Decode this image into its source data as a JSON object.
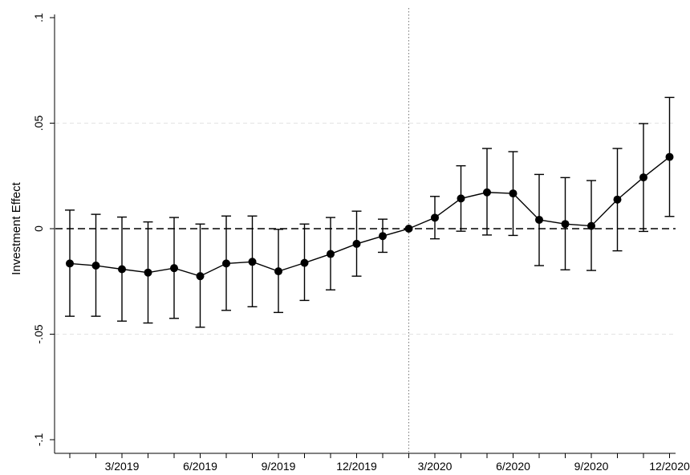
{
  "chart_data": {
    "type": "line",
    "title": "",
    "xlabel": "",
    "ylabel": "Investment Effect",
    "ylim": [
      -0.1,
      0.1
    ],
    "y_ticks": [
      {
        "value": 0.1,
        "label": ".1"
      },
      {
        "value": 0.05,
        "label": ".05"
      },
      {
        "value": 0,
        "label": "0"
      },
      {
        "value": -0.05,
        "label": "-.05"
      },
      {
        "value": -0.1,
        "label": "-.1"
      }
    ],
    "x_ticks": [
      {
        "value": "1/2019",
        "label": ""
      },
      {
        "value": "2/2019",
        "label": ""
      },
      {
        "value": "3/2019",
        "label": "3/2019"
      },
      {
        "value": "4/2019",
        "label": ""
      },
      {
        "value": "5/2019",
        "label": ""
      },
      {
        "value": "6/2019",
        "label": "6/2019"
      },
      {
        "value": "7/2019",
        "label": ""
      },
      {
        "value": "8/2019",
        "label": ""
      },
      {
        "value": "9/2019",
        "label": "9/2019"
      },
      {
        "value": "10/2019",
        "label": ""
      },
      {
        "value": "11/2019",
        "label": ""
      },
      {
        "value": "12/2019",
        "label": "12/2019"
      },
      {
        "value": "1/2020",
        "label": ""
      },
      {
        "value": "2/2020",
        "label": ""
      },
      {
        "value": "3/2020",
        "label": "3/2020"
      },
      {
        "value": "4/2020",
        "label": ""
      },
      {
        "value": "5/2020",
        "label": ""
      },
      {
        "value": "6/2020",
        "label": "6/2020"
      },
      {
        "value": "7/2020",
        "label": ""
      },
      {
        "value": "8/2020",
        "label": ""
      },
      {
        "value": "9/2020",
        "label": "9/2020"
      },
      {
        "value": "10/2020",
        "label": ""
      },
      {
        "value": "11/2020",
        "label": ""
      },
      {
        "value": "12/2020",
        "label": "12/2020"
      }
    ],
    "reference_line_y": 0,
    "reference_line_x": "2/2020",
    "grid": {
      "y": true,
      "x": false
    },
    "series": [
      {
        "x": [
          "1/2019",
          "2/2019",
          "3/2019",
          "4/2019",
          "5/2019",
          "6/2019",
          "7/2019",
          "8/2019",
          "9/2019",
          "10/2019",
          "11/2019",
          "12/2019",
          "1/2020",
          "2/2020",
          "3/2020",
          "4/2020",
          "5/2020",
          "6/2020",
          "7/2020",
          "8/2020",
          "9/2020",
          "10/2020",
          "11/2020",
          "12/2020"
        ],
        "y": [
          -0.0165,
          -0.0175,
          -0.0192,
          -0.0208,
          -0.0187,
          -0.0225,
          -0.0165,
          -0.0157,
          -0.0202,
          -0.0162,
          -0.012,
          -0.0072,
          -0.0035,
          0.0,
          0.0052,
          0.0143,
          0.0172,
          0.0167,
          0.0042,
          0.0022,
          0.0013,
          0.0138,
          0.0243,
          0.034
        ],
        "lower": [
          -0.0415,
          -0.0415,
          -0.0438,
          -0.0447,
          -0.0425,
          -0.0467,
          -0.0387,
          -0.037,
          -0.0397,
          -0.034,
          -0.029,
          -0.0225,
          -0.0112,
          0.0,
          -0.0048,
          -0.0012,
          -0.003,
          -0.0032,
          -0.0175,
          -0.0195,
          -0.0198,
          -0.0105,
          -0.0013,
          0.0058
        ],
        "upper": [
          0.0088,
          0.0068,
          0.0055,
          0.0032,
          0.0053,
          0.0022,
          0.006,
          0.006,
          -0.0003,
          0.0022,
          0.0053,
          0.0083,
          0.0045,
          0.0,
          0.0153,
          0.0298,
          0.038,
          0.0365,
          0.0257,
          0.0242,
          0.0228,
          0.038,
          0.0498,
          0.0622
        ]
      }
    ]
  }
}
